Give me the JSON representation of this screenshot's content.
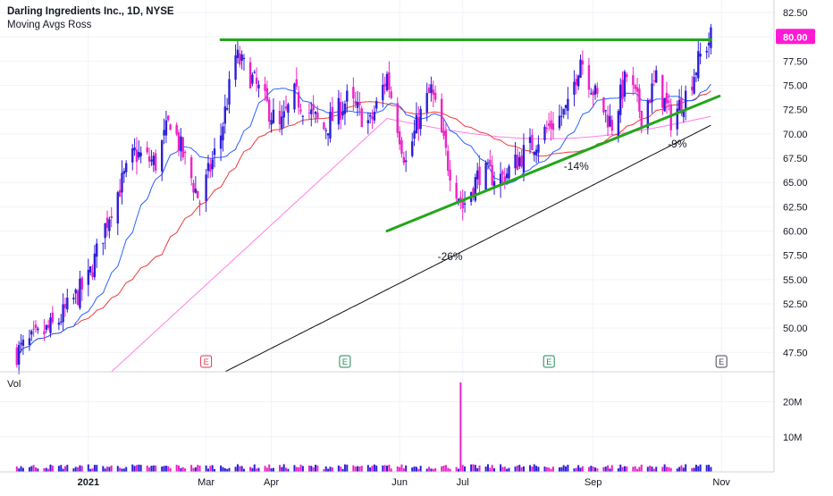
{
  "header": {
    "title": "Darling Ingredients Inc., 1D, NYSE",
    "indicator": "Moving Avgs Ross"
  },
  "volume_pane": {
    "label": "Vol"
  },
  "colors": {
    "up_candle": "#2c1fd9",
    "down_candle": "#ee22c8",
    "ma_short": "#2a62ff",
    "ma_mid": "#ee3a3a",
    "ma_long_pink": "#ff7ee6",
    "ma_200": "#111111",
    "trendline": "#23a61a",
    "price_badge": "#ff1ad6",
    "earnings_red": "#e0384f",
    "earnings_green": "#1c8a57"
  },
  "chart_data": {
    "type": "candlestick",
    "y_axis": {
      "range": [
        45.5,
        83.8
      ],
      "ticks": [
        "82.50",
        "80.00",
        "77.50",
        "75.00",
        "72.50",
        "70.00",
        "67.50",
        "65.00",
        "62.50",
        "60.00",
        "57.50",
        "55.00",
        "52.50",
        "50.00",
        "47.50"
      ]
    },
    "last_price": "80.00",
    "x_axis": {
      "ticks": [
        {
          "label": "2021",
          "bold": true,
          "date": "2021-01-04"
        },
        {
          "label": "Mar",
          "date": "2021-03-01"
        },
        {
          "label": "Apr",
          "date": "2021-04-01"
        },
        {
          "label": "Jun",
          "date": "2021-06-01"
        },
        {
          "label": "Jul",
          "date": "2021-07-01"
        },
        {
          "label": "Sep",
          "date": "2021-09-01"
        },
        {
          "label": "Nov",
          "date": "2021-11-01"
        }
      ]
    },
    "anchors": [
      {
        "date": "2020-12-01",
        "close": 47.5
      },
      {
        "date": "2020-12-20",
        "close": 50.5
      },
      {
        "date": "2021-01-04",
        "close": 55.0
      },
      {
        "date": "2021-01-15",
        "close": 62.5
      },
      {
        "date": "2021-01-26",
        "close": 68.0
      },
      {
        "date": "2021-02-05",
        "close": 67.0
      },
      {
        "date": "2021-02-12",
        "close": 71.5
      },
      {
        "date": "2021-02-26",
        "close": 63.0
      },
      {
        "date": "2021-03-08",
        "close": 70.0
      },
      {
        "date": "2021-03-15",
        "close": 78.0
      },
      {
        "date": "2021-03-22",
        "close": 76.0
      },
      {
        "date": "2021-04-05",
        "close": 70.5
      },
      {
        "date": "2021-04-12",
        "close": 74.0
      },
      {
        "date": "2021-04-26",
        "close": 70.5
      },
      {
        "date": "2021-05-07",
        "close": 73.5
      },
      {
        "date": "2021-05-18",
        "close": 71.0
      },
      {
        "date": "2021-05-26",
        "close": 76.0
      },
      {
        "date": "2021-06-04",
        "close": 67.0
      },
      {
        "date": "2021-06-10",
        "close": 71.5
      },
      {
        "date": "2021-06-16",
        "close": 74.5
      },
      {
        "date": "2021-06-24",
        "close": 67.0
      },
      {
        "date": "2021-07-01",
        "close": 62.5
      },
      {
        "date": "2021-07-09",
        "close": 66.0
      },
      {
        "date": "2021-07-20",
        "close": 65.5
      },
      {
        "date": "2021-07-30",
        "close": 68.0
      },
      {
        "date": "2021-08-10",
        "close": 70.5
      },
      {
        "date": "2021-08-20",
        "close": 72.5
      },
      {
        "date": "2021-08-26",
        "close": 78.0
      },
      {
        "date": "2021-09-02",
        "close": 74.0
      },
      {
        "date": "2021-09-10",
        "close": 71.0
      },
      {
        "date": "2021-09-17",
        "close": 76.0
      },
      {
        "date": "2021-09-24",
        "close": 72.0
      },
      {
        "date": "2021-10-01",
        "close": 75.5
      },
      {
        "date": "2021-10-08",
        "close": 71.5
      },
      {
        "date": "2021-10-15",
        "close": 74.0
      },
      {
        "date": "2021-10-22",
        "close": 78.0
      },
      {
        "date": "2021-10-27",
        "close": 80.0
      }
    ],
    "volume": {
      "y_axis": {
        "ticks": [
          "20M",
          "10M"
        ]
      },
      "spike": {
        "date": "2021-06-30",
        "value": 25.5
      },
      "typical_range_millions": [
        0.8,
        2.2
      ]
    },
    "annotations": [
      {
        "type": "trendline",
        "name": "resistance",
        "from": {
          "date": "2021-03-08",
          "price": 79.7
        },
        "to": {
          "date": "2021-10-27",
          "price": 79.7
        }
      },
      {
        "type": "trendline",
        "name": "support",
        "from": {
          "date": "2021-05-26",
          "price": 60.0
        },
        "to": {
          "date": "2021-10-31",
          "price": 73.9
        }
      },
      {
        "type": "text",
        "text": "-26%",
        "date": "2021-06-25",
        "price": 57.0
      },
      {
        "type": "text",
        "text": "-14%",
        "date": "2021-08-24",
        "price": 66.3
      },
      {
        "type": "text",
        "text": "-9%",
        "date": "2021-10-11",
        "price": 68.6
      }
    ],
    "earnings": [
      {
        "label": "E",
        "date": "2021-03-01",
        "color": "red"
      },
      {
        "label": "E",
        "date": "2021-05-06",
        "color": "green"
      },
      {
        "label": "E",
        "date": "2021-08-11",
        "color": "green"
      },
      {
        "label": "E",
        "date": "2021-11-01",
        "color": "gray"
      }
    ]
  }
}
